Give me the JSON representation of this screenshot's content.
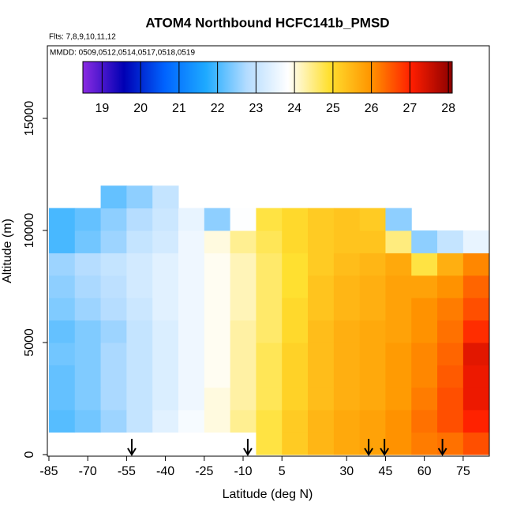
{
  "chart_data": {
    "type": "heatmap",
    "title": "ATOM4 Northbound HCFC141b_PMSD",
    "subtitle": "Flts: 7,8,9,10,11,12",
    "annotation": "MMDD: 0509,0512,0514,0517,0518,0519",
    "x_label": "Latitude (deg N)",
    "y_label": "Altitude (m)",
    "xlim": [
      -85.6,
      85.1
    ],
    "ylim": [
      -70,
      18240
    ],
    "xticks": [
      -85,
      -70,
      -55,
      -40,
      -25,
      -10,
      5,
      30,
      45,
      60,
      75
    ],
    "yticks": [
      0,
      5000,
      10000,
      15000
    ],
    "x_edges": [
      -85,
      -75,
      -65,
      -55,
      -45,
      -35,
      -25,
      -15,
      -5,
      5,
      15,
      25,
      35,
      45,
      55,
      65,
      75,
      85
    ],
    "y_edges": [
      0,
      1000,
      2000,
      3000,
      4000,
      5000,
      6000,
      7000,
      8000,
      9000,
      10000,
      11000,
      12000
    ],
    "z": [
      [
        null,
        null,
        null,
        null,
        null,
        null,
        null,
        null,
        24.8,
        25.2,
        25.5,
        25.7,
        25.8,
        26.0,
        26.2,
        26.3,
        26.6
      ],
      [
        22.1,
        22.3,
        22.6,
        23.0,
        23.4,
        23.7,
        24.0,
        24.4,
        24.8,
        25.2,
        25.5,
        25.7,
        25.8,
        26.0,
        26.3,
        26.6,
        27.0
      ],
      [
        22.2,
        22.4,
        22.7,
        23.0,
        23.3,
        23.6,
        24.0,
        24.3,
        24.7,
        25.1,
        25.4,
        25.6,
        25.7,
        25.9,
        26.2,
        26.6,
        27.2
      ],
      [
        22.2,
        22.4,
        22.7,
        23.0,
        23.3,
        23.6,
        23.9,
        24.3,
        24.7,
        25.1,
        25.4,
        25.6,
        25.7,
        25.9,
        26.1,
        26.5,
        27.2
      ],
      [
        22.3,
        22.4,
        22.7,
        23.0,
        23.3,
        23.6,
        23.9,
        24.3,
        24.7,
        25.1,
        25.4,
        25.6,
        25.7,
        25.9,
        26.1,
        26.4,
        27.3
      ],
      [
        22.2,
        22.4,
        22.6,
        23.0,
        23.3,
        23.6,
        23.9,
        24.3,
        24.6,
        25.0,
        25.4,
        25.6,
        25.7,
        25.8,
        26.0,
        26.3,
        26.9
      ],
      [
        22.4,
        22.6,
        22.8,
        23.1,
        23.4,
        23.6,
        23.9,
        24.2,
        24.6,
        25.0,
        25.3,
        25.5,
        25.6,
        25.8,
        26.0,
        26.2,
        26.6
      ],
      [
        22.5,
        22.7,
        22.9,
        23.2,
        23.4,
        23.6,
        23.9,
        24.2,
        24.6,
        24.9,
        25.3,
        25.5,
        25.6,
        25.8,
        25.8,
        26.0,
        26.4
      ],
      [
        22.6,
        22.8,
        23.0,
        23.2,
        23.4,
        23.6,
        23.9,
        24.2,
        24.6,
        24.9,
        25.2,
        25.4,
        25.5,
        25.7,
        24.8,
        25.6,
        26.1
      ],
      [
        22.0,
        22.3,
        22.6,
        23.0,
        23.2,
        23.6,
        24.0,
        24.4,
        24.7,
        25.0,
        25.2,
        25.3,
        25.3,
        24.5,
        22.5,
        23.0,
        23.5
      ],
      [
        22.0,
        22.2,
        22.5,
        22.8,
        23.1,
        23.5,
        22.5,
        23.8,
        24.8,
        25.0,
        25.2,
        25.3,
        25.2,
        22.5,
        null,
        null,
        null
      ],
      [
        null,
        null,
        22.2,
        22.5,
        23.0,
        null,
        null,
        null,
        null,
        null,
        null,
        null,
        null,
        null,
        null,
        null,
        null
      ]
    ],
    "arrows": [
      -53,
      -8.2,
      38.5,
      44.6,
      67
    ],
    "colorbar": {
      "lim": [
        18.5,
        28.1
      ],
      "ticks": [
        19,
        20,
        21,
        22,
        23,
        24,
        25,
        26,
        27,
        28
      ],
      "colors": [
        "#8a2be2",
        "#0000b4",
        "#0064ff",
        "#1eaaff",
        "#b4dcff",
        "#ffffff",
        "#ffe030",
        "#ff9600",
        "#ff1e00",
        "#8b0000"
      ]
    }
  }
}
